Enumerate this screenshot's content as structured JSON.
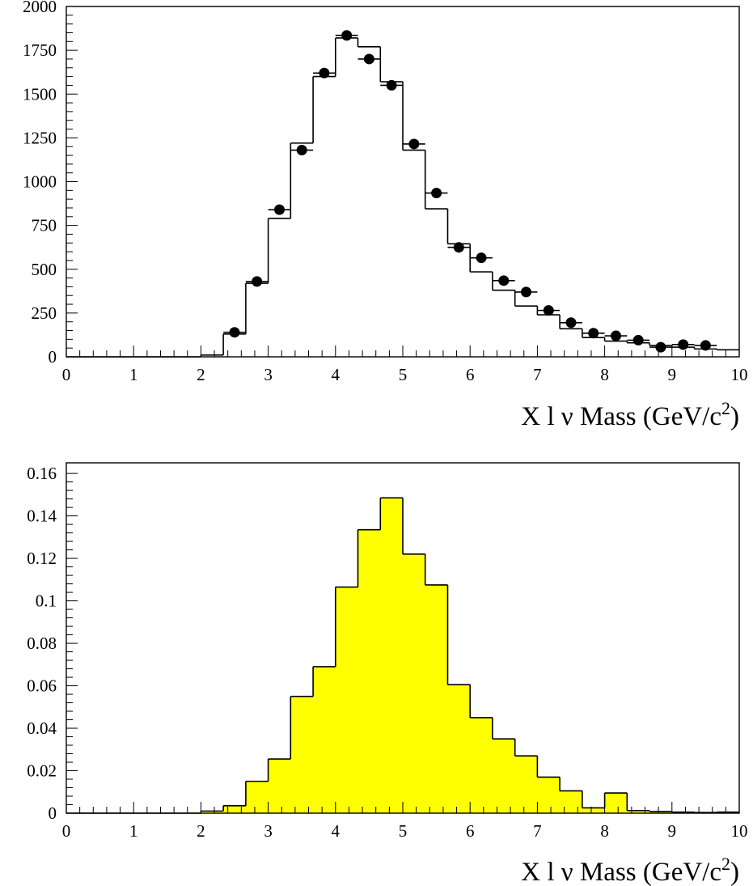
{
  "chart_data": [
    {
      "type": "bar",
      "xlabel": "X l ν Mass (GeV/c²)",
      "xlabel_parts": {
        "main": "X l ν Mass (GeV/c",
        "sup": "2",
        "close": ")"
      },
      "xlim": [
        0,
        10
      ],
      "ylim": [
        0,
        2000
      ],
      "xticks": [
        "0",
        "1",
        "2",
        "3",
        "4",
        "5",
        "6",
        "7",
        "8",
        "9",
        "10"
      ],
      "yticks": [
        "0",
        "250",
        "500",
        "750",
        "1000",
        "1250",
        "1500",
        "1750",
        "2000"
      ],
      "grid": false,
      "series": [
        {
          "style": "step-outline",
          "bin_edges": [
            0,
            2,
            2.333,
            2.667,
            3.0,
            3.333,
            3.667,
            4.0,
            4.333,
            4.667,
            5.0,
            5.333,
            5.667,
            6.0,
            6.333,
            6.667,
            7.0,
            7.333,
            7.667,
            8.0,
            8.333,
            8.667,
            9.0,
            9.333,
            9.667,
            10
          ],
          "values": [
            0,
            10,
            130,
            420,
            790,
            1220,
            1600,
            1820,
            1770,
            1570,
            1180,
            845,
            645,
            485,
            380,
            290,
            240,
            160,
            110,
            90,
            80,
            65,
            55,
            45,
            40
          ]
        },
        {
          "style": "points-with-errors",
          "x": [
            2.5,
            2.833,
            3.167,
            3.5,
            3.833,
            4.167,
            4.5,
            4.833,
            5.167,
            5.5,
            5.833,
            6.167,
            6.5,
            6.833,
            7.167,
            7.5,
            7.833,
            8.167,
            8.5,
            8.833,
            9.167,
            9.5
          ],
          "y": [
            140,
            430,
            840,
            1180,
            1620,
            1835,
            1700,
            1550,
            1215,
            935,
            625,
            565,
            435,
            370,
            265,
            195,
            135,
            120,
            95,
            55,
            70,
            65
          ]
        }
      ]
    },
    {
      "type": "bar",
      "xlabel": "X l ν Mass (GeV/c²)",
      "xlabel_parts": {
        "main": "X l ν Mass (GeV/c",
        "sup": "2",
        "close": ")"
      },
      "xlim": [
        0,
        10
      ],
      "ylim": [
        0,
        0.165
      ],
      "xticks": [
        "0",
        "1",
        "2",
        "3",
        "4",
        "5",
        "6",
        "7",
        "8",
        "9",
        "10"
      ],
      "yticks": [
        "0",
        "0.02",
        "0.04",
        "0.06",
        "0.08",
        "0.1",
        "0.12",
        "0.14",
        "0.16"
      ],
      "grid": false,
      "fill_color": "#ffff00",
      "series": [
        {
          "style": "filled-step",
          "bin_edges": [
            0,
            2,
            2.333,
            2.667,
            3.0,
            3.333,
            3.667,
            4.0,
            4.333,
            4.667,
            5.0,
            5.333,
            5.667,
            6.0,
            6.333,
            6.667,
            7.0,
            7.333,
            7.667,
            8.0,
            8.333,
            8.667,
            9.0,
            9.333,
            9.667,
            10
          ],
          "values": [
            0,
            0.001,
            0.0035,
            0.015,
            0.0255,
            0.055,
            0.069,
            0.1065,
            0.1335,
            0.1485,
            0.122,
            0.1075,
            0.0605,
            0.045,
            0.035,
            0.027,
            0.017,
            0.0105,
            0.0025,
            0.0095,
            0.0012,
            0.0008,
            0.0005,
            0.0003,
            0.0005
          ]
        }
      ]
    }
  ]
}
